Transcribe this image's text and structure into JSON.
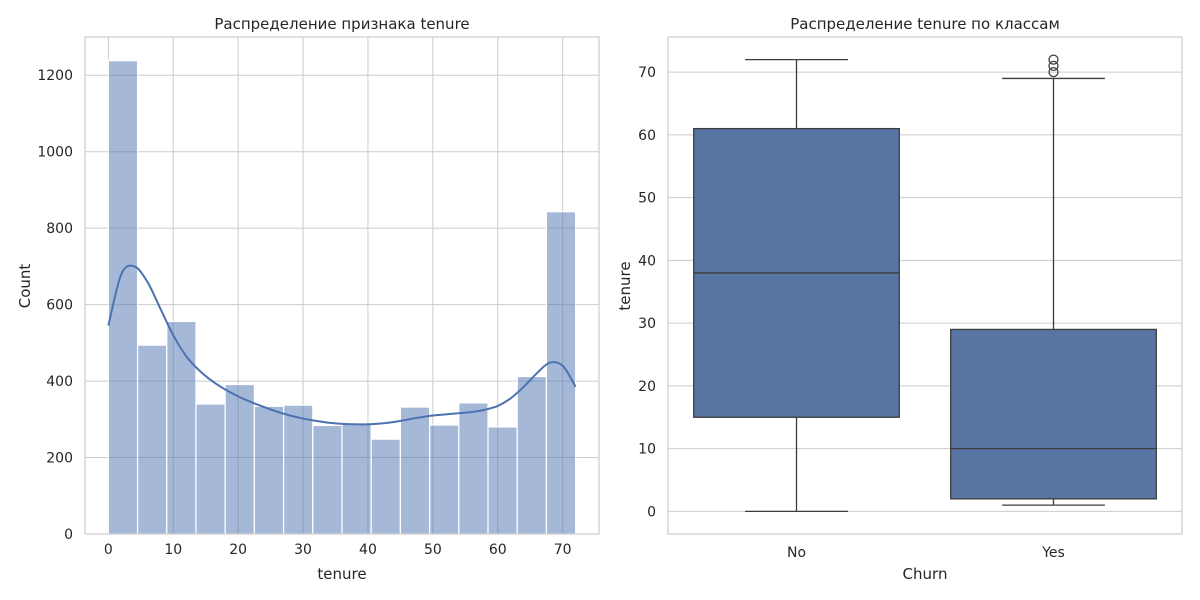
{
  "chart_data": [
    {
      "type": "bar",
      "subtype": "histogram_with_kde",
      "title": "Распределение признака tenure",
      "xlabel": "tenure",
      "ylabel": "Count",
      "xlim": [
        -3.6,
        75.6
      ],
      "ylim": [
        0,
        1300
      ],
      "xticks": [
        0,
        10,
        20,
        30,
        40,
        50,
        60,
        70
      ],
      "yticks": [
        0,
        200,
        400,
        600,
        800,
        1000,
        1200
      ],
      "grid": true,
      "color": "#4c72b0",
      "bins": [
        {
          "x0": 0.0,
          "x1": 4.5,
          "count": 1238
        },
        {
          "x0": 4.5,
          "x1": 9.0,
          "count": 494
        },
        {
          "x0": 9.0,
          "x1": 13.5,
          "count": 556
        },
        {
          "x0": 13.5,
          "x1": 18.0,
          "count": 340
        },
        {
          "x0": 18.0,
          "x1": 22.5,
          "count": 391
        },
        {
          "x0": 22.5,
          "x1": 27.0,
          "count": 334
        },
        {
          "x0": 27.0,
          "x1": 31.5,
          "count": 337
        },
        {
          "x0": 31.5,
          "x1": 36.0,
          "count": 284
        },
        {
          "x0": 36.0,
          "x1": 40.5,
          "count": 289
        },
        {
          "x0": 40.5,
          "x1": 45.0,
          "count": 248
        },
        {
          "x0": 45.0,
          "x1": 49.5,
          "count": 332
        },
        {
          "x0": 49.5,
          "x1": 54.0,
          "count": 285
        },
        {
          "x0": 54.0,
          "x1": 58.5,
          "count": 343
        },
        {
          "x0": 58.5,
          "x1": 63.0,
          "count": 280
        },
        {
          "x0": 63.0,
          "x1": 67.5,
          "count": 412
        },
        {
          "x0": 67.5,
          "x1": 72.0,
          "count": 843
        }
      ],
      "kde": {
        "x": [
          0,
          2,
          4,
          6,
          8,
          10,
          12,
          14,
          16,
          18,
          20,
          22,
          24,
          26,
          28,
          30,
          32,
          34,
          36,
          38,
          40,
          42,
          44,
          46,
          48,
          50,
          52,
          54,
          56,
          58,
          60,
          62,
          64,
          66,
          68,
          70,
          72
        ],
        "y": [
          545,
          680,
          700,
          660,
          590,
          520,
          465,
          428,
          400,
          378,
          360,
          345,
          332,
          320,
          310,
          302,
          296,
          291,
          288,
          287,
          287,
          289,
          293,
          299,
          305,
          310,
          313,
          316,
          319,
          325,
          335,
          355,
          385,
          420,
          448,
          440,
          385
        ]
      }
    },
    {
      "type": "box",
      "title": "Распределение tenure по классам",
      "xlabel": "Churn",
      "ylabel": "tenure",
      "ylim": [
        -3.6,
        75.6
      ],
      "yticks": [
        0,
        10,
        20,
        30,
        40,
        50,
        60,
        70
      ],
      "grid": true,
      "color": "#5875a4",
      "categories": [
        "No",
        "Yes"
      ],
      "boxes": [
        {
          "category": "No",
          "whislo": 0,
          "q1": 15,
          "median": 38,
          "q3": 61,
          "whishi": 72,
          "fliers": []
        },
        {
          "category": "Yes",
          "whislo": 1,
          "q1": 2,
          "median": 10,
          "q3": 29,
          "whishi": 69,
          "fliers": [
            70,
            71,
            72
          ]
        }
      ]
    }
  ]
}
